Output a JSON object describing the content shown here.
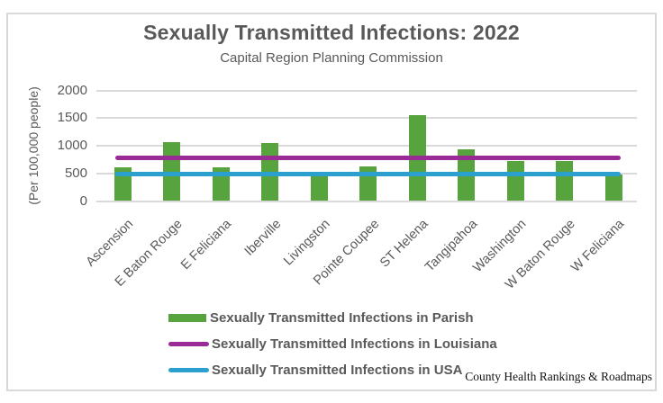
{
  "chart_data": {
    "type": "bar",
    "title": "Sexually Transmitted Infections: 2022",
    "subtitle": "Capital Region Planning Commission",
    "ylabel": "(Per 100,000 people)",
    "xlabel": "",
    "ylim": [
      0,
      2000
    ],
    "yticks": [
      0,
      500,
      1000,
      1500,
      2000
    ],
    "grid": true,
    "legend_position": "bottom-left",
    "categories": [
      "Ascension",
      "E Baton Rouge",
      "E Feliciana",
      "Iberville",
      "Livingston",
      "Pointe Coupee",
      "ST Helena",
      "Tangipahoa",
      "Washington",
      "W Baton Rouge",
      "W Feliciana"
    ],
    "series": [
      {
        "name": "Sexually Transmitted Infections in Parish",
        "type": "bar",
        "color": "#57a33d",
        "values": [
          615,
          1070,
          615,
          1045,
          465,
          630,
          1550,
          930,
          730,
          730,
          475
        ]
      },
      {
        "name": "Sexually Transmitted Infections in Louisiana",
        "type": "line",
        "color": "#9a2b96",
        "value": 780
      },
      {
        "name": "Sexually Transmitted Infections in USA",
        "type": "line",
        "color": "#2ba0cf",
        "value": 490
      }
    ],
    "annotation": "County Health Rankings & Roadmaps"
  },
  "colors": {
    "bar_green": "#57a33d",
    "line_purple": "#9a2b96",
    "line_blue": "#2ba0cf",
    "grid": "#d9d9d9",
    "frame": "#d9d9d9",
    "text": "#595959",
    "attribution_text": "#111111"
  }
}
